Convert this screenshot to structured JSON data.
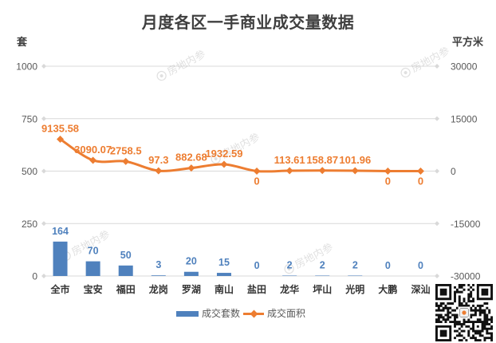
{
  "chart_data": {
    "type": "bar",
    "title": "月度各区一手商业成交量数据",
    "categories": [
      "全市",
      "宝安",
      "福田",
      "龙岗",
      "罗湖",
      "南山",
      "盐田",
      "龙华",
      "坪山",
      "光明",
      "大鹏",
      "深汕"
    ],
    "series": [
      {
        "name": "成交套数",
        "type": "bar",
        "axis": "left",
        "color": "#4f81bd",
        "values": [
          164,
          70,
          50,
          3,
          20,
          15,
          0,
          2,
          2,
          2,
          0,
          0
        ]
      },
      {
        "name": "成交面积",
        "type": "line",
        "axis": "right",
        "smooth": true,
        "marker": "diamond",
        "color": "#ed7d31",
        "values": [
          9135.58,
          3090.07,
          2758.5,
          97.3,
          882.68,
          1932.59,
          0,
          113.61,
          158.87,
          101.96,
          0,
          0
        ]
      }
    ],
    "y_left": {
      "label": "套",
      "range": [
        0,
        1000
      ],
      "ticks": [
        0,
        250,
        500,
        750,
        1000
      ]
    },
    "y_right": {
      "label": "平方米",
      "range": [
        -30000,
        30000
      ],
      "ticks": [
        -30000,
        -15000,
        0,
        15000,
        30000
      ]
    },
    "data_labels": true,
    "grid": true,
    "legend": "bottom"
  },
  "watermark": {
    "text": "房地内参"
  },
  "colors": {
    "grid": "#d9d9d9",
    "tick_text": "#595959",
    "category_text": "#333333"
  }
}
